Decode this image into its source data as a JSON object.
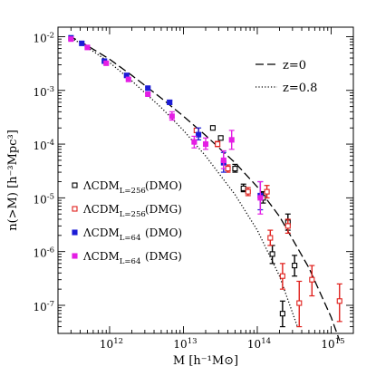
{
  "chart_data": {
    "type": "scatter",
    "xlabel": "M  [h⁻¹M⊙]",
    "ylabel": "n(>M)  [h⁻³Mpc³]",
    "xscale": "log",
    "yscale": "log",
    "xlim": [
      200000000000.0,
      2000000000000000.0
    ],
    "ylim": [
      3e-08,
      0.015
    ],
    "x_ticks": [
      {
        "value": 1000000000000.0,
        "base": "10",
        "exp": "12"
      },
      {
        "value": 10000000000000.0,
        "base": "10",
        "exp": "13"
      },
      {
        "value": 100000000000000.0,
        "base": "10",
        "exp": "14"
      },
      {
        "value": 1000000000000000.0,
        "base": "10",
        "exp": "15"
      }
    ],
    "y_ticks": [
      {
        "value": 0.01,
        "base": "10",
        "exp": "-2"
      },
      {
        "value": 0.001,
        "base": "10",
        "exp": "-3"
      },
      {
        "value": 0.0001,
        "base": "10",
        "exp": "-4"
      },
      {
        "value": 1e-05,
        "base": "10",
        "exp": "-5"
      },
      {
        "value": 1e-06,
        "base": "10",
        "exp": "-6"
      },
      {
        "value": 1e-07,
        "base": "10",
        "exp": "-7"
      }
    ],
    "curves": [
      {
        "name": "z=0",
        "style": "dashed",
        "color": "#000000",
        "points": [
          [
            280000000000.0,
            0.0105
          ],
          [
            500000000000.0,
            0.0068
          ],
          [
            1000000000000.0,
            0.0038
          ],
          [
            2000000000000.0,
            0.0019
          ],
          [
            5000000000000.0,
            0.00072
          ],
          [
            10000000000000.0,
            0.00033
          ],
          [
            20000000000000.0,
            0.000145
          ],
          [
            50000000000000.0,
            4.5e-05
          ],
          [
            100000000000000.0,
            1.6e-05
          ],
          [
            200000000000000.0,
            4.5e-06
          ],
          [
            500000000000000.0,
            5e-07
          ],
          [
            1000000000000000.0,
            6e-08
          ],
          [
            1300000000000000.0,
            2.2e-08
          ]
        ]
      },
      {
        "name": "z=0.8",
        "style": "dotted",
        "color": "#000000",
        "points": [
          [
            280000000000.0,
            0.01
          ],
          [
            500000000000.0,
            0.0063
          ],
          [
            1000000000000.0,
            0.0033
          ],
          [
            2000000000000.0,
            0.0015
          ],
          [
            5000000000000.0,
            0.00048
          ],
          [
            10000000000000.0,
            0.00018
          ],
          [
            20000000000000.0,
            6e-05
          ],
          [
            50000000000000.0,
            1.15e-05
          ],
          [
            100000000000000.0,
            2.5e-06
          ],
          [
            200000000000000.0,
            3.5e-07
          ],
          [
            350000000000000.0,
            4e-08
          ]
        ]
      }
    ],
    "series": [
      {
        "name": "ΛCDM",
        "subscript": "L=256",
        "tag": "(DMO)",
        "marker": "open-square",
        "color": "#000000",
        "points": [
          {
            "x": 25000000000000.0,
            "y": 0.0002,
            "lo": 0.0002,
            "hi": 0.0002
          },
          {
            "x": 32000000000000.0,
            "y": 0.00013,
            "lo": 0.00012,
            "hi": 0.00014
          },
          {
            "x": 50000000000000.0,
            "y": 3.5e-05,
            "lo": 3e-05,
            "hi": 4.2e-05
          },
          {
            "x": 65000000000000.0,
            "y": 1.5e-05,
            "lo": 1.3e-05,
            "hi": 1.8e-05
          },
          {
            "x": 120000000000000.0,
            "y": 1e-05,
            "lo": 8e-06,
            "hi": 1.3e-05
          },
          {
            "x": 160000000000000.0,
            "y": 9e-07,
            "lo": 6e-07,
            "hi": 1.3e-06
          },
          {
            "x": 220000000000000.0,
            "y": 7e-08,
            "lo": 4e-08,
            "hi": 1.2e-07
          },
          {
            "x": 260000000000000.0,
            "y": 3.5e-06,
            "lo": 2.5e-06,
            "hi": 5e-06
          },
          {
            "x": 320000000000000.0,
            "y": 5.5e-07,
            "lo": 3.5e-07,
            "hi": 8.5e-07
          }
        ]
      },
      {
        "name": "ΛCDM",
        "subscript": "L=256",
        "tag": "(DMG)",
        "marker": "open-square",
        "color": "#e0201c",
        "points": [
          {
            "x": 15000000000000.0,
            "y": 0.00018,
            "lo": 0.00018,
            "hi": 0.00018
          },
          {
            "x": 29000000000000.0,
            "y": 0.0001,
            "lo": 9e-05,
            "hi": 0.000112
          },
          {
            "x": 40000000000000.0,
            "y": 3.5e-05,
            "lo": 3e-05,
            "hi": 4.1e-05
          },
          {
            "x": 75000000000000.0,
            "y": 1.3e-05,
            "lo": 1.1e-05,
            "hi": 1.55e-05
          },
          {
            "x": 135000000000000.0,
            "y": 1.3e-05,
            "lo": 1e-05,
            "hi": 1.7e-05
          },
          {
            "x": 150000000000000.0,
            "y": 1.8e-06,
            "lo": 1.3e-06,
            "hi": 2.5e-06
          },
          {
            "x": 220000000000000.0,
            "y": 3.5e-07,
            "lo": 2e-07,
            "hi": 6e-07
          },
          {
            "x": 260000000000000.0,
            "y": 3e-06,
            "lo": 2.2e-06,
            "hi": 4e-06
          },
          {
            "x": 370000000000000.0,
            "y": 1.1e-07,
            "lo": 4e-08,
            "hi": 2.8e-07
          },
          {
            "x": 550000000000000.0,
            "y": 3e-07,
            "lo": 1.5e-07,
            "hi": 5.5e-07
          },
          {
            "x": 1300000000000000.0,
            "y": 1.2e-07,
            "lo": 5e-08,
            "hi": 2.5e-07
          }
        ]
      },
      {
        "name": "ΛCDM",
        "subscript": "L=64",
        "tag": "(DMO)",
        "marker": "filled-square",
        "color": "#1c1cd6",
        "points": [
          {
            "x": 300000000000.0,
            "y": 0.0095,
            "lo": 0.0095,
            "hi": 0.0095
          },
          {
            "x": 420000000000.0,
            "y": 0.0075,
            "lo": 0.0075,
            "hi": 0.0075
          },
          {
            "x": 850000000000.0,
            "y": 0.0035,
            "lo": 0.0035,
            "hi": 0.0035
          },
          {
            "x": 1700000000000.0,
            "y": 0.0019,
            "lo": 0.0019,
            "hi": 0.0019
          },
          {
            "x": 3300000000000.0,
            "y": 0.0011,
            "lo": 0.00105,
            "hi": 0.00115
          },
          {
            "x": 6500000000000.0,
            "y": 0.0006,
            "lo": 0.00055,
            "hi": 0.00065
          },
          {
            "x": 16000000000000.0,
            "y": 0.00015,
            "lo": 0.00012,
            "hi": 0.0002
          },
          {
            "x": 35000000000000.0,
            "y": 4.5e-05,
            "lo": 3e-05,
            "hi": 7e-05
          },
          {
            "x": 110000000000000.0,
            "y": 1.1e-05,
            "lo": 6e-06,
            "hi": 2e-05
          }
        ]
      },
      {
        "name": "ΛCDM",
        "subscript": "L=64",
        "tag": "(DMG)",
        "marker": "filled-square",
        "color": "#e41ee4",
        "points": [
          {
            "x": 300000000000.0,
            "y": 0.009,
            "lo": 0.009,
            "hi": 0.009
          },
          {
            "x": 500000000000.0,
            "y": 0.0063,
            "lo": 0.0063,
            "hi": 0.0063
          },
          {
            "x": 900000000000.0,
            "y": 0.0032,
            "lo": 0.0032,
            "hi": 0.0032
          },
          {
            "x": 1800000000000.0,
            "y": 0.0016,
            "lo": 0.0016,
            "hi": 0.0016
          },
          {
            "x": 3300000000000.0,
            "y": 0.00085,
            "lo": 0.0008,
            "hi": 0.0009
          },
          {
            "x": 7000000000000.0,
            "y": 0.00033,
            "lo": 0.00028,
            "hi": 0.0004
          },
          {
            "x": 14000000000000.0,
            "y": 0.00011,
            "lo": 8.5e-05,
            "hi": 0.00014
          },
          {
            "x": 20000000000000.0,
            "y": 0.0001,
            "lo": 8e-05,
            "hi": 0.00013
          },
          {
            "x": 35000000000000.0,
            "y": 5e-05,
            "lo": 3.5e-05,
            "hi": 7.5e-05
          },
          {
            "x": 45000000000000.0,
            "y": 0.00012,
            "lo": 8e-05,
            "hi": 0.00018
          },
          {
            "x": 110000000000000.0,
            "y": 1e-05,
            "lo": 5e-06,
            "hi": 2e-05
          }
        ]
      }
    ],
    "legend_lines_position": "top-right",
    "legend_markers_position": "bottom-left",
    "grid": false
  }
}
